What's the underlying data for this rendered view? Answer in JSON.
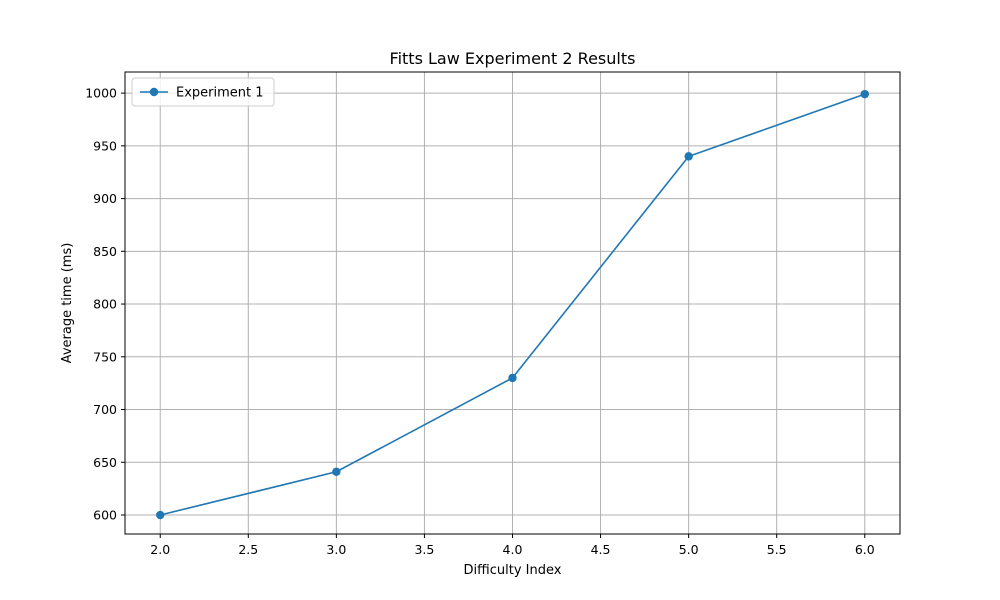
{
  "chart_data": {
    "type": "line",
    "title": "Fitts Law Experiment 2 Results",
    "xlabel": "Difficulty Index",
    "ylabel": "Average time (ms)",
    "xlim": [
      1.8,
      6.2
    ],
    "ylim": [
      582,
      1020
    ],
    "x_ticks": [
      2.0,
      2.5,
      3.0,
      3.5,
      4.0,
      4.5,
      5.0,
      5.5,
      6.0
    ],
    "x_tick_labels": [
      "2.0",
      "2.5",
      "3.0",
      "3.5",
      "4.0",
      "4.5",
      "5.0",
      "5.5",
      "6.0"
    ],
    "y_ticks": [
      600,
      650,
      700,
      750,
      800,
      850,
      900,
      950,
      1000
    ],
    "y_tick_labels": [
      "600",
      "650",
      "700",
      "750",
      "800",
      "850",
      "900",
      "950",
      "1000"
    ],
    "grid": true,
    "legend_position": "top-left",
    "series": [
      {
        "name": "Experiment 1",
        "color": "#1f77b4",
        "marker": "circle",
        "x": [
          2.0,
          3.0,
          4.0,
          5.0,
          6.0
        ],
        "y": [
          600,
          641,
          730,
          940,
          999
        ]
      }
    ]
  }
}
